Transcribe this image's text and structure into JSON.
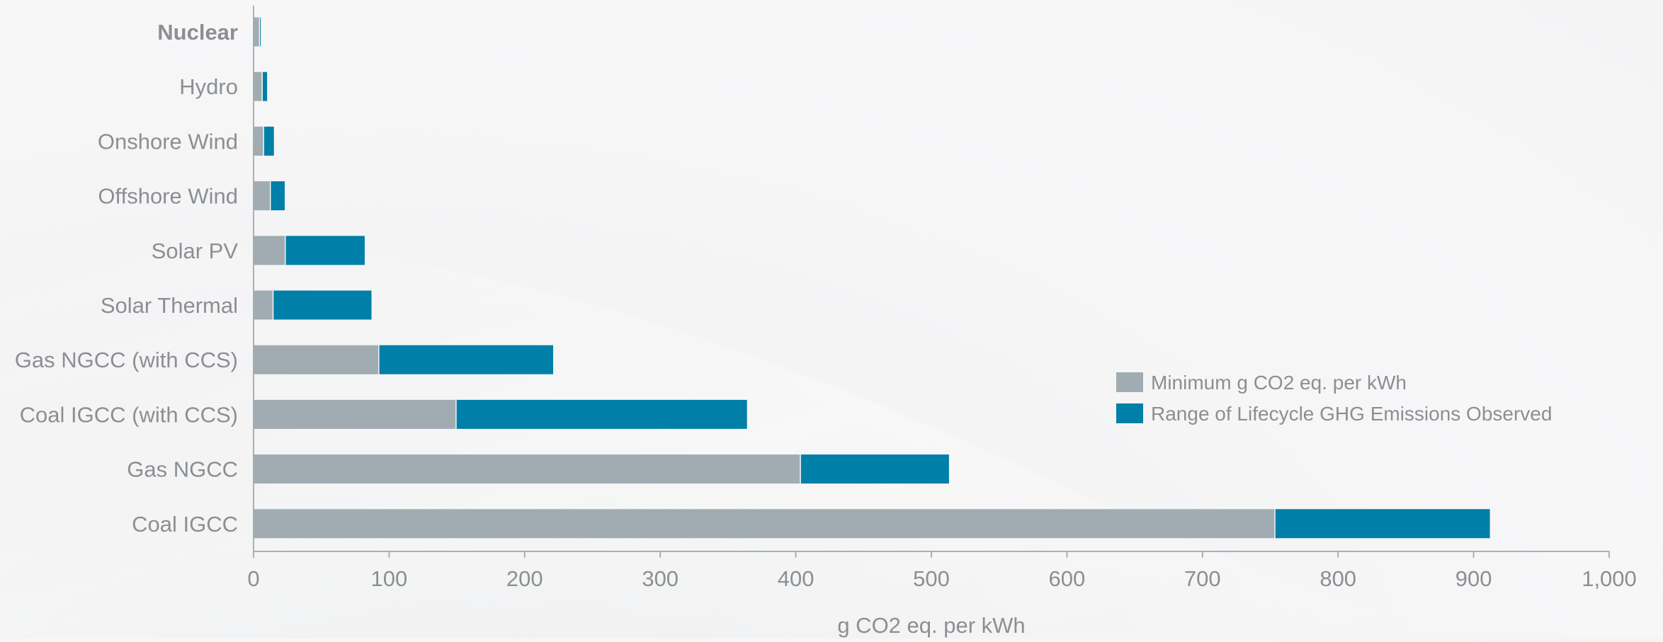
{
  "chart_data": {
    "type": "bar",
    "orientation": "horizontal",
    "stacked": true,
    "categories": [
      "Nuclear",
      "Hydro",
      "Onshore Wind",
      "Offshore Wind",
      "Solar PV",
      "Solar Thermal",
      "Gas NGCC (with CCS)",
      "Coal IGCC (with CCS)",
      "Gas NGCC",
      "Coal IGCC"
    ],
    "series": [
      {
        "name": "Minimum g CO2 eq. per kWh",
        "color": "#a1acb2",
        "values": [
          4,
          6,
          7,
          12,
          23,
          14,
          92,
          149,
          403,
          753
        ]
      },
      {
        "name": "Range of Lifecycle GHG Emissions Observed",
        "color": "#007fa8",
        "values": [
          1,
          4,
          8,
          11,
          59,
          73,
          129,
          215,
          110,
          159
        ]
      }
    ],
    "bold_categories": [
      "Nuclear"
    ],
    "xlabel": "g CO2 eq. per kWh",
    "xlim": [
      0,
      1000
    ],
    "xticks": [
      0,
      100,
      200,
      300,
      400,
      500,
      600,
      700,
      800,
      900,
      1000
    ],
    "xtick_labels": [
      "0",
      "100",
      "200",
      "300",
      "400",
      "500",
      "600",
      "700",
      "800",
      "900",
      "1,000"
    ],
    "grid": false,
    "legend_position": "right-middle"
  }
}
